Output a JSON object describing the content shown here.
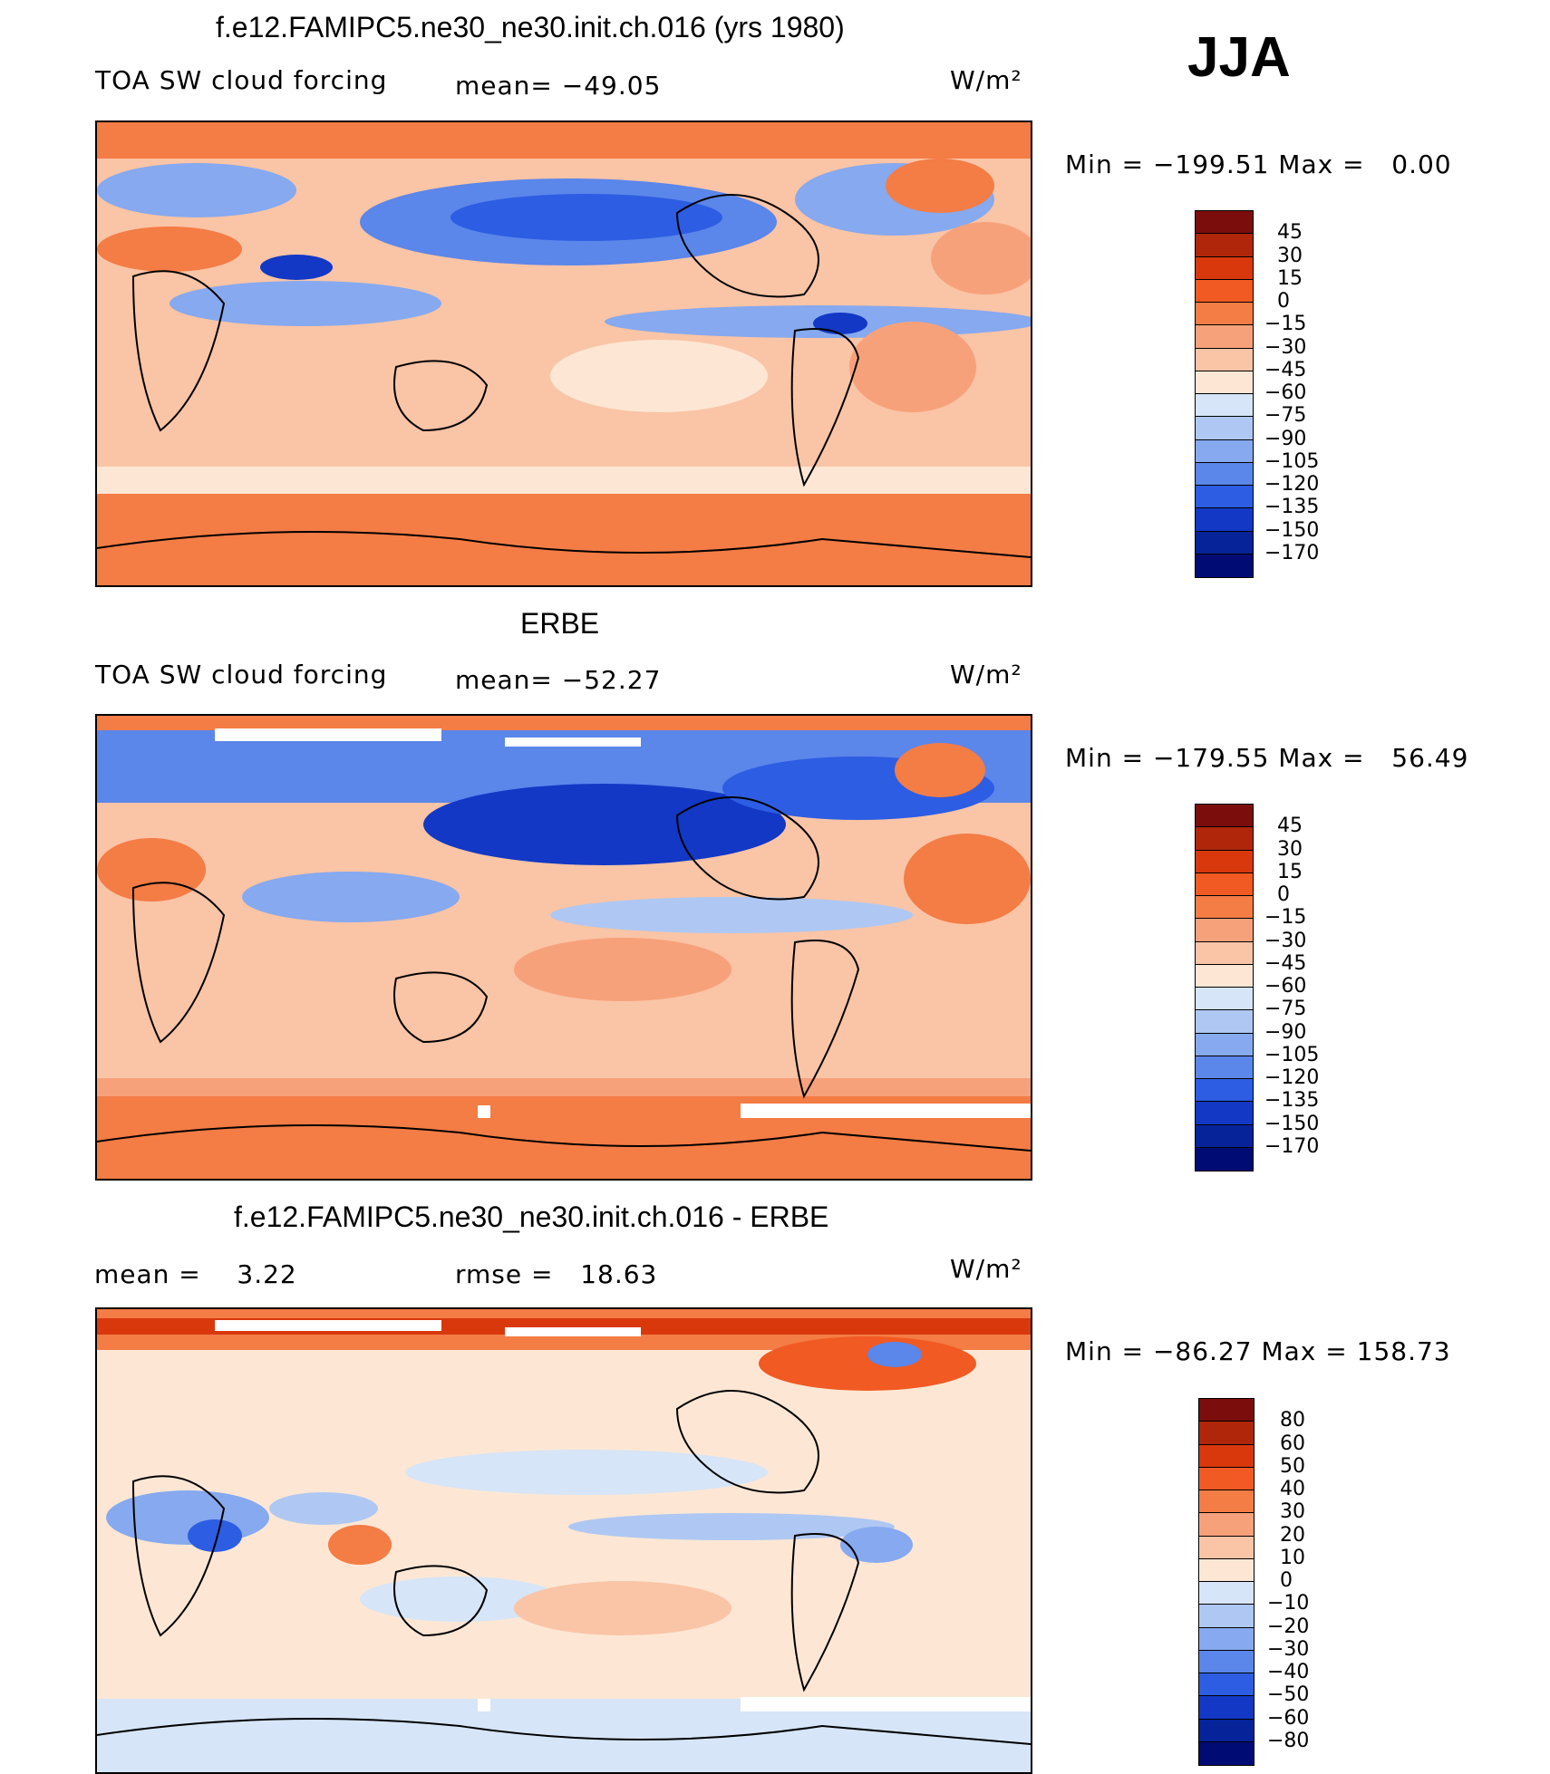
{
  "season": "JJA",
  "units": "W/m²",
  "chart_data": [
    {
      "type": "heatmap",
      "title": "f.e12.FAMIPC5.ne30_ne30.init.ch.016 (yrs 1980)",
      "field": "TOA SW cloud forcing",
      "mean_label": "mean=",
      "mean": "−49.05",
      "min_label": "Min",
      "min": "−199.51",
      "max_label": "Max",
      "max": "0.00",
      "levels": [
        "45",
        "30",
        "15",
        "0",
        "−15",
        "−30",
        "−45",
        "−60",
        "−75",
        "−90",
        "−105",
        "−120",
        "−135",
        "−150",
        "−170"
      ]
    },
    {
      "type": "heatmap",
      "title": "ERBE",
      "field": "TOA SW cloud forcing",
      "mean_label": "mean=",
      "mean": "−52.27",
      "min_label": "Min",
      "min": "−179.55",
      "max_label": "Max",
      "max": "56.49",
      "levels": [
        "45",
        "30",
        "15",
        "0",
        "−15",
        "−30",
        "−45",
        "−60",
        "−75",
        "−90",
        "−105",
        "−120",
        "−135",
        "−150",
        "−170"
      ]
    },
    {
      "type": "heatmap",
      "title": "f.e12.FAMIPC5.ne30_ne30.init.ch.016 - ERBE",
      "mean_label": "mean =",
      "mean": "3.22",
      "rmse_label": "rmse =",
      "rmse": "18.63",
      "min_label": "Min",
      "min": "−86.27",
      "max_label": "Max",
      "max": "158.73",
      "levels": [
        "80",
        "60",
        "50",
        "40",
        "30",
        "20",
        "10",
        "0",
        "−10",
        "−20",
        "−30",
        "−40",
        "−50",
        "−60",
        "−80"
      ]
    }
  ],
  "colors": {
    "scale": [
      "#7b0d0d",
      "#b0260b",
      "#d9380d",
      "#f15a22",
      "#f47c45",
      "#f7a17a",
      "#fac4a6",
      "#fde7d4",
      "#d6e5f7",
      "#aec8f3",
      "#86a9ef",
      "#5b86ea",
      "#2d5de2",
      "#1238c5",
      "#06239a",
      "#000b74"
    ]
  }
}
